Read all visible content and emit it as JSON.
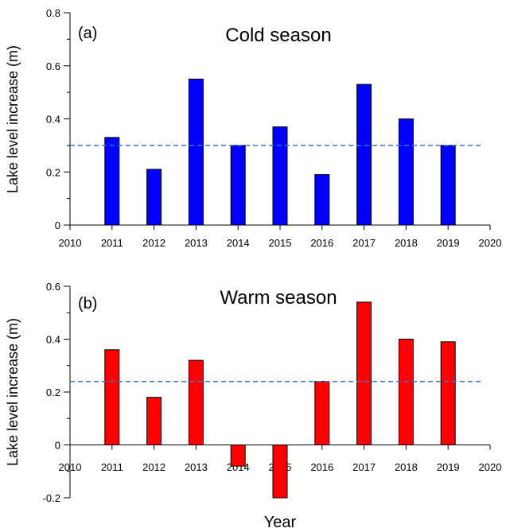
{
  "chart_data": [
    {
      "type": "bar",
      "panel_label": "(a)",
      "title": "Cold season",
      "ylabel": "Lake level increase (m)",
      "xlabel": "Year",
      "x": [
        2011,
        2012,
        2013,
        2014,
        2015,
        2016,
        2017,
        2018,
        2019
      ],
      "values": [
        0.33,
        0.21,
        0.55,
        0.3,
        0.37,
        0.19,
        0.53,
        0.4,
        0.3
      ],
      "mean_line": 0.3,
      "xlim": [
        2010,
        2020
      ],
      "ylim": [
        0,
        0.8
      ],
      "xticks": [
        "2010",
        "2011",
        "2012",
        "2013",
        "2014",
        "2015",
        "2016",
        "2017",
        "2018",
        "2019",
        "2020"
      ],
      "yticks": [
        "0",
        "0.2",
        "0.4",
        "0.6",
        "0.8"
      ],
      "bar_color": "#0000ff",
      "mean_line_color": "#4472c4"
    },
    {
      "type": "bar",
      "panel_label": "(b)",
      "title": "Warm season",
      "ylabel": "Lake level increase (m)",
      "xlabel": "Year",
      "x": [
        2011,
        2012,
        2013,
        2014,
        2015,
        2016,
        2017,
        2018,
        2019
      ],
      "values": [
        0.36,
        0.18,
        0.32,
        -0.08,
        -0.2,
        0.24,
        0.54,
        0.4,
        0.39
      ],
      "mean_line": 0.24,
      "xlim": [
        2010,
        2020
      ],
      "ylim": [
        -0.2,
        0.6
      ],
      "xticks": [
        "2010",
        "2011",
        "2012",
        "2013",
        "2014",
        "2015",
        "2016",
        "2017",
        "2018",
        "2019",
        "2020"
      ],
      "yticks": [
        "-0.2",
        "0",
        "0.2",
        "0.4",
        "0.6"
      ],
      "bar_color": "#ff0000",
      "mean_line_color": "#4472c4"
    }
  ],
  "shared_xlabel": "Year"
}
